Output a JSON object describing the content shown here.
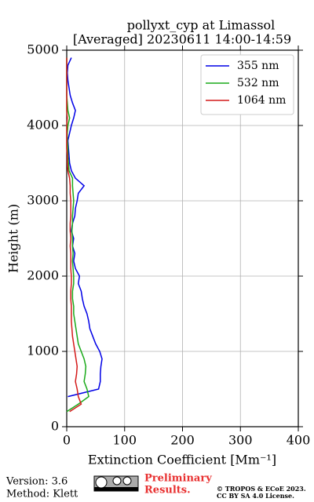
{
  "chart_data": {
    "type": "line",
    "title": "pollyxt_cyp at Limassol",
    "subtitle": "[Averaged] 20230611 14:00-14:59",
    "xlabel": "Extinction Coefficient [Mm⁻¹]",
    "ylabel": "Height (m)",
    "heights": [
      200,
      300,
      400,
      500,
      600,
      700,
      800,
      900,
      1000,
      1100,
      1200,
      1300,
      1400,
      1500,
      1600,
      1700,
      1800,
      1900,
      2000,
      2100,
      2200,
      2300,
      2400,
      2500,
      2600,
      2700,
      2800,
      2900,
      3000,
      3100,
      3200,
      3300,
      3400,
      3500,
      3600,
      3700,
      3800,
      3900,
      4000,
      4100,
      4200,
      4300,
      4400,
      4500,
      4600,
      4700,
      4800,
      4900
    ],
    "series": [
      {
        "name": "355 nm",
        "color": "#0000e6",
        "values": [
          null,
          null,
          2,
          55,
          58,
          58,
          59,
          61,
          57,
          50,
          45,
          40,
          38,
          35,
          30,
          27,
          25,
          20,
          22,
          15,
          12,
          14,
          10,
          12,
          8,
          10,
          14,
          15,
          18,
          20,
          30,
          15,
          8,
          5,
          4,
          3,
          2,
          5,
          8,
          12,
          15,
          10,
          6,
          4,
          2,
          1,
          2,
          8
        ]
      },
      {
        "name": "532 nm",
        "color": "#1aaa1a",
        "values": [
          0,
          20,
          38,
          35,
          30,
          32,
          33,
          30,
          25,
          20,
          18,
          16,
          14,
          12,
          12,
          10,
          10,
          12,
          12,
          11,
          10,
          11,
          10,
          10,
          9,
          10,
          10,
          11,
          12,
          11,
          10,
          10,
          4,
          3,
          2,
          2,
          1,
          1,
          2,
          5,
          2,
          1,
          0,
          0,
          0,
          0,
          0,
          0
        ]
      },
      {
        "name": "1064 nm",
        "color": "#d41a1a",
        "values": [
          5,
          25,
          20,
          18,
          15,
          17,
          18,
          16,
          14,
          12,
          10,
          9,
          8,
          8,
          8,
          7,
          7,
          8,
          8,
          7,
          7,
          7,
          6,
          7,
          6,
          6,
          7,
          7,
          7,
          6,
          6,
          5,
          2,
          1,
          1,
          0,
          0,
          0,
          0,
          1,
          0,
          0,
          0,
          0,
          0,
          0,
          0,
          0
        ]
      }
    ],
    "xlim": [
      0,
      400
    ],
    "xticks": [
      0,
      100,
      200,
      300,
      400
    ],
    "ylim": [
      0,
      5000
    ],
    "yticks": [
      0,
      1000,
      2000,
      3000,
      4000,
      5000
    ],
    "grid": true,
    "legend": "upper right",
    "footer": {
      "version": "Version: 3.6",
      "method": "Method: Klett",
      "status": "Preliminary Results.",
      "copyright": "© TROPOS & ECoE 2023.",
      "license": "CC BY SA 4.0 License."
    }
  }
}
